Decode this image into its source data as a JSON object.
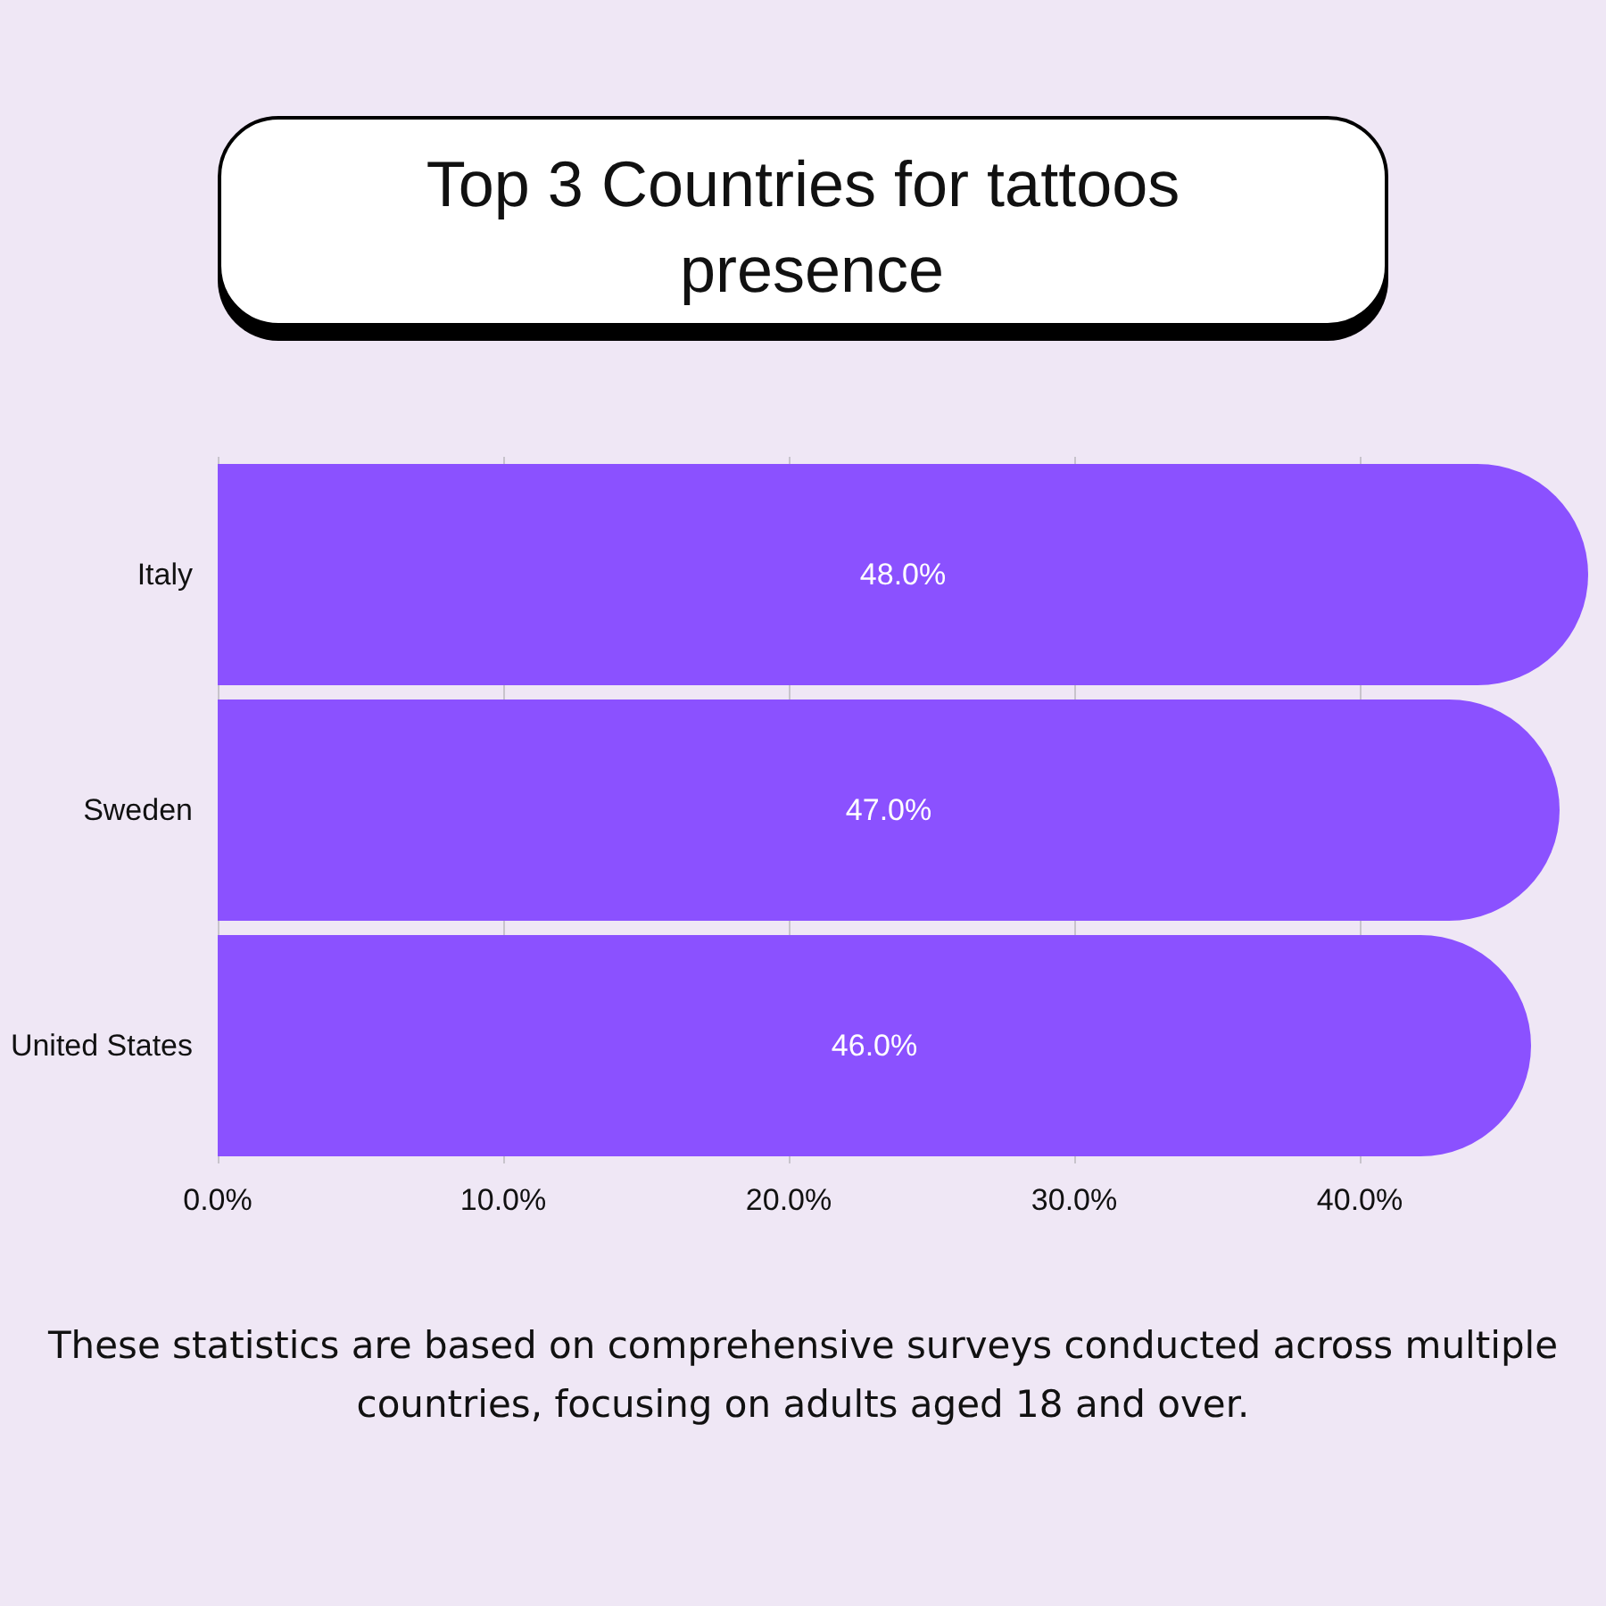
{
  "chart_data": {
    "type": "bar",
    "orientation": "horizontal",
    "title": "Top 3 Countries for tattoos presence",
    "categories": [
      "Italy",
      "Sweden",
      "United States"
    ],
    "values": [
      48,
      47,
      46
    ],
    "value_labels": [
      "48.0%",
      "47.0%",
      "46.0%"
    ],
    "color": "#8b51ff",
    "xlim": [
      0,
      48
    ],
    "xticks": [
      {
        "value": 0,
        "label": "0.0%"
      },
      {
        "value": 10,
        "label": "10.0%"
      },
      {
        "value": 20,
        "label": "20.0%"
      },
      {
        "value": 30,
        "label": "30.0%"
      },
      {
        "value": 40,
        "label": "40.0%"
      }
    ],
    "grid": "x",
    "annotations": [
      "These statistics are based on comprehensive surveys conducted across multiple countries, focusing on adults aged 18 and over."
    ]
  }
}
